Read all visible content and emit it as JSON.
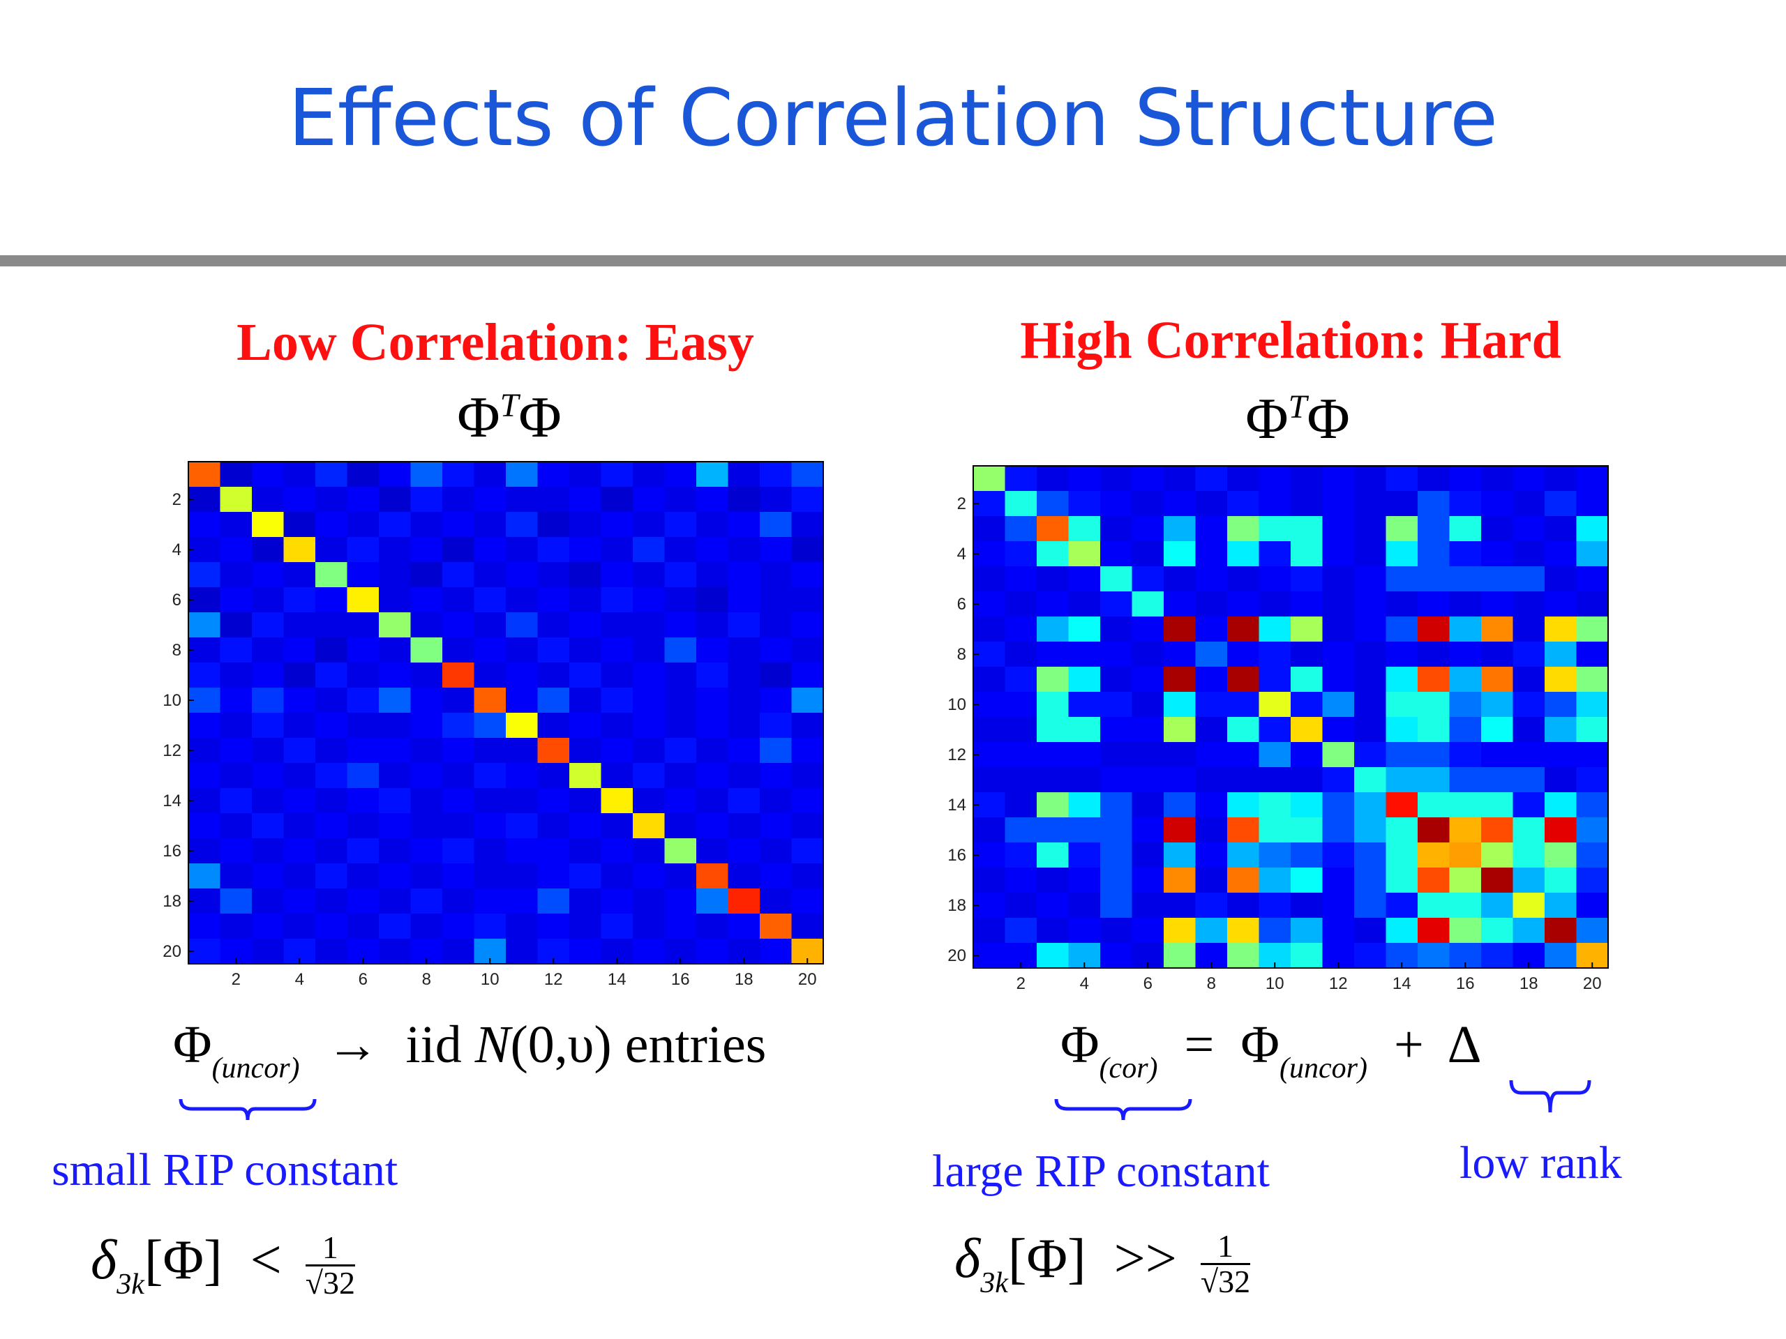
{
  "slide": {
    "title": "Effects of Correlation Structure"
  },
  "left": {
    "heading": "Low Correlation: Easy",
    "matrix_title_main": "Φ",
    "matrix_title_sup": "T",
    "matrix_title_end": "Φ",
    "eq_phi": "Φ",
    "eq_sub": "(uncor)",
    "eq_arrow": "→",
    "eq_iid": "iid",
    "eq_N": "N",
    "eq_args": "(0,υ)",
    "eq_entries": "entries",
    "brace_label": "small RIP constant",
    "rip_delta": "δ",
    "rip_sub": "3k",
    "rip_arg": "[Φ]",
    "rip_op": "<",
    "rip_num": "1",
    "rip_den": "√32"
  },
  "right": {
    "heading": "High Correlation: Hard",
    "matrix_title_main": "Φ",
    "matrix_title_sup": "T",
    "matrix_title_end": "Φ",
    "eq_phi1": "Φ",
    "eq_sub1": "(cor)",
    "eq_equals": "=",
    "eq_phi2": "Φ",
    "eq_sub2": "(uncor)",
    "eq_plus": "+",
    "eq_delta": "Δ",
    "brace_label_left": "large RIP constant",
    "brace_label_right": "low rank",
    "rip_delta": "δ",
    "rip_sub": "3k",
    "rip_arg": "[Φ]",
    "rip_op": ">>",
    "rip_num": "1",
    "rip_den": "√32"
  },
  "chart_data": [
    {
      "type": "heatmap",
      "title": "",
      "colormap": "jet",
      "value_range": [
        0,
        1
      ],
      "x_ticks": [
        2,
        4,
        6,
        8,
        10,
        12,
        14,
        16,
        18,
        20
      ],
      "y_ticks": [
        2,
        4,
        6,
        8,
        10,
        12,
        14,
        16,
        18,
        20
      ],
      "rows": 20,
      "cols": 20,
      "values": [
        [
          0.78,
          0.08,
          0.12,
          0.1,
          0.16,
          0.08,
          0.12,
          0.22,
          0.14,
          0.1,
          0.24,
          0.12,
          0.1,
          0.14,
          0.1,
          0.12,
          0.3,
          0.1,
          0.14,
          0.2
        ],
        [
          0.08,
          0.58,
          0.1,
          0.12,
          0.1,
          0.12,
          0.08,
          0.14,
          0.1,
          0.12,
          0.1,
          0.1,
          0.12,
          0.08,
          0.12,
          0.1,
          0.12,
          0.08,
          0.1,
          0.14
        ],
        [
          0.12,
          0.1,
          0.62,
          0.08,
          0.12,
          0.1,
          0.14,
          0.1,
          0.12,
          0.1,
          0.16,
          0.08,
          0.1,
          0.12,
          0.1,
          0.14,
          0.1,
          0.12,
          0.2,
          0.1
        ],
        [
          0.1,
          0.12,
          0.08,
          0.66,
          0.1,
          0.14,
          0.1,
          0.12,
          0.08,
          0.12,
          0.1,
          0.14,
          0.12,
          0.1,
          0.16,
          0.1,
          0.12,
          0.1,
          0.12,
          0.08
        ],
        [
          0.16,
          0.1,
          0.12,
          0.1,
          0.5,
          0.12,
          0.1,
          0.08,
          0.14,
          0.1,
          0.12,
          0.1,
          0.08,
          0.12,
          0.1,
          0.14,
          0.1,
          0.12,
          0.1,
          0.12
        ],
        [
          0.08,
          0.12,
          0.1,
          0.14,
          0.12,
          0.64,
          0.1,
          0.12,
          0.1,
          0.14,
          0.1,
          0.12,
          0.1,
          0.14,
          0.12,
          0.1,
          0.08,
          0.12,
          0.1,
          0.1
        ],
        [
          0.26,
          0.08,
          0.14,
          0.1,
          0.1,
          0.1,
          0.52,
          0.1,
          0.12,
          0.1,
          0.18,
          0.1,
          0.12,
          0.1,
          0.1,
          0.12,
          0.1,
          0.14,
          0.1,
          0.12
        ],
        [
          0.1,
          0.14,
          0.1,
          0.12,
          0.08,
          0.12,
          0.1,
          0.5,
          0.1,
          0.12,
          0.1,
          0.14,
          0.1,
          0.12,
          0.1,
          0.2,
          0.12,
          0.1,
          0.12,
          0.1
        ],
        [
          0.14,
          0.1,
          0.12,
          0.08,
          0.14,
          0.1,
          0.12,
          0.1,
          0.82,
          0.1,
          0.12,
          0.1,
          0.14,
          0.1,
          0.12,
          0.1,
          0.14,
          0.1,
          0.08,
          0.12
        ],
        [
          0.2,
          0.12,
          0.18,
          0.12,
          0.1,
          0.14,
          0.22,
          0.12,
          0.1,
          0.78,
          0.12,
          0.2,
          0.1,
          0.14,
          0.12,
          0.1,
          0.12,
          0.1,
          0.12,
          0.26
        ],
        [
          0.12,
          0.1,
          0.14,
          0.1,
          0.12,
          0.1,
          0.1,
          0.12,
          0.16,
          0.2,
          0.62,
          0.1,
          0.12,
          0.1,
          0.12,
          0.1,
          0.12,
          0.1,
          0.14,
          0.1
        ],
        [
          0.1,
          0.12,
          0.1,
          0.14,
          0.1,
          0.12,
          0.12,
          0.1,
          0.12,
          0.1,
          0.1,
          0.8,
          0.1,
          0.12,
          0.1,
          0.14,
          0.1,
          0.12,
          0.2,
          0.12
        ],
        [
          0.12,
          0.1,
          0.12,
          0.1,
          0.14,
          0.18,
          0.1,
          0.12,
          0.1,
          0.14,
          0.12,
          0.1,
          0.58,
          0.1,
          0.14,
          0.1,
          0.12,
          0.1,
          0.12,
          0.1
        ],
        [
          0.1,
          0.14,
          0.1,
          0.12,
          0.1,
          0.12,
          0.14,
          0.1,
          0.12,
          0.1,
          0.1,
          0.12,
          0.1,
          0.64,
          0.1,
          0.12,
          0.1,
          0.14,
          0.1,
          0.12
        ],
        [
          0.12,
          0.1,
          0.14,
          0.1,
          0.12,
          0.1,
          0.12,
          0.1,
          0.1,
          0.12,
          0.14,
          0.1,
          0.12,
          0.1,
          0.66,
          0.1,
          0.12,
          0.1,
          0.12,
          0.1
        ],
        [
          0.1,
          0.12,
          0.1,
          0.12,
          0.1,
          0.14,
          0.1,
          0.12,
          0.14,
          0.1,
          0.12,
          0.12,
          0.1,
          0.12,
          0.1,
          0.52,
          0.1,
          0.12,
          0.1,
          0.14
        ],
        [
          0.26,
          0.1,
          0.12,
          0.1,
          0.14,
          0.1,
          0.12,
          0.1,
          0.12,
          0.1,
          0.1,
          0.12,
          0.14,
          0.1,
          0.12,
          0.1,
          0.8,
          0.1,
          0.12,
          0.1
        ],
        [
          0.1,
          0.2,
          0.1,
          0.12,
          0.1,
          0.12,
          0.1,
          0.14,
          0.1,
          0.12,
          0.12,
          0.2,
          0.1,
          0.12,
          0.1,
          0.12,
          0.24,
          0.84,
          0.1,
          0.12
        ],
        [
          0.12,
          0.1,
          0.12,
          0.1,
          0.12,
          0.1,
          0.14,
          0.1,
          0.12,
          0.14,
          0.1,
          0.12,
          0.1,
          0.14,
          0.1,
          0.12,
          0.1,
          0.12,
          0.78,
          0.1
        ],
        [
          0.14,
          0.12,
          0.1,
          0.14,
          0.1,
          0.12,
          0.1,
          0.12,
          0.1,
          0.26,
          0.1,
          0.14,
          0.12,
          0.1,
          0.12,
          0.1,
          0.12,
          0.1,
          0.12,
          0.7
        ]
      ]
    },
    {
      "type": "heatmap",
      "title": "",
      "colormap": "jet",
      "value_range": [
        0,
        1
      ],
      "x_ticks": [
        2,
        4,
        6,
        8,
        10,
        12,
        14,
        16,
        18,
        20
      ],
      "y_ticks": [
        2,
        4,
        6,
        8,
        10,
        12,
        14,
        16,
        18,
        20
      ],
      "rows": 20,
      "cols": 20,
      "values": [
        [
          0.52,
          0.14,
          0.1,
          0.12,
          0.1,
          0.12,
          0.1,
          0.14,
          0.1,
          0.12,
          0.1,
          0.12,
          0.1,
          0.14,
          0.1,
          0.12,
          0.1,
          0.12,
          0.1,
          0.12
        ],
        [
          0.14,
          0.4,
          0.2,
          0.14,
          0.12,
          0.1,
          0.12,
          0.1,
          0.14,
          0.12,
          0.1,
          0.12,
          0.1,
          0.1,
          0.2,
          0.14,
          0.12,
          0.1,
          0.16,
          0.12
        ],
        [
          0.1,
          0.2,
          0.78,
          0.4,
          0.1,
          0.12,
          0.3,
          0.12,
          0.5,
          0.4,
          0.4,
          0.12,
          0.1,
          0.5,
          0.2,
          0.4,
          0.1,
          0.12,
          0.1,
          0.36
        ],
        [
          0.12,
          0.14,
          0.4,
          0.54,
          0.12,
          0.1,
          0.38,
          0.12,
          0.36,
          0.14,
          0.4,
          0.12,
          0.1,
          0.36,
          0.2,
          0.14,
          0.12,
          0.1,
          0.12,
          0.3
        ],
        [
          0.1,
          0.12,
          0.1,
          0.12,
          0.4,
          0.14,
          0.1,
          0.12,
          0.1,
          0.12,
          0.14,
          0.1,
          0.12,
          0.2,
          0.2,
          0.2,
          0.2,
          0.2,
          0.1,
          0.12
        ],
        [
          0.12,
          0.1,
          0.12,
          0.1,
          0.14,
          0.4,
          0.12,
          0.1,
          0.12,
          0.1,
          0.12,
          0.1,
          0.12,
          0.1,
          0.12,
          0.1,
          0.12,
          0.1,
          0.12,
          0.1
        ],
        [
          0.1,
          0.12,
          0.3,
          0.38,
          0.1,
          0.12,
          0.96,
          0.12,
          0.96,
          0.36,
          0.54,
          0.1,
          0.12,
          0.2,
          0.92,
          0.3,
          0.74,
          0.1,
          0.66,
          0.5
        ],
        [
          0.14,
          0.1,
          0.12,
          0.12,
          0.12,
          0.1,
          0.12,
          0.22,
          0.12,
          0.14,
          0.1,
          0.12,
          0.1,
          0.12,
          0.1,
          0.12,
          0.1,
          0.14,
          0.3,
          0.12
        ],
        [
          0.1,
          0.14,
          0.5,
          0.36,
          0.1,
          0.12,
          0.96,
          0.12,
          0.96,
          0.14,
          0.4,
          0.12,
          0.1,
          0.36,
          0.8,
          0.3,
          0.76,
          0.1,
          0.66,
          0.5
        ],
        [
          0.12,
          0.12,
          0.4,
          0.14,
          0.14,
          0.1,
          0.36,
          0.14,
          0.14,
          0.6,
          0.14,
          0.26,
          0.1,
          0.4,
          0.4,
          0.24,
          0.3,
          0.14,
          0.2,
          0.34
        ],
        [
          0.1,
          0.1,
          0.4,
          0.4,
          0.12,
          0.12,
          0.54,
          0.1,
          0.4,
          0.14,
          0.66,
          0.12,
          0.1,
          0.36,
          0.4,
          0.2,
          0.38,
          0.1,
          0.3,
          0.4
        ],
        [
          0.12,
          0.12,
          0.12,
          0.12,
          0.1,
          0.1,
          0.1,
          0.12,
          0.12,
          0.26,
          0.12,
          0.5,
          0.14,
          0.2,
          0.2,
          0.14,
          0.12,
          0.12,
          0.12,
          0.12
        ],
        [
          0.1,
          0.1,
          0.1,
          0.1,
          0.12,
          0.12,
          0.12,
          0.1,
          0.1,
          0.1,
          0.1,
          0.14,
          0.4,
          0.3,
          0.3,
          0.2,
          0.2,
          0.2,
          0.1,
          0.14
        ],
        [
          0.14,
          0.1,
          0.5,
          0.36,
          0.2,
          0.1,
          0.2,
          0.12,
          0.36,
          0.4,
          0.36,
          0.2,
          0.3,
          0.86,
          0.4,
          0.4,
          0.4,
          0.14,
          0.36,
          0.2
        ],
        [
          0.1,
          0.2,
          0.2,
          0.2,
          0.2,
          0.12,
          0.92,
          0.1,
          0.8,
          0.4,
          0.4,
          0.2,
          0.3,
          0.4,
          0.96,
          0.7,
          0.8,
          0.4,
          0.9,
          0.24
        ],
        [
          0.12,
          0.14,
          0.4,
          0.14,
          0.2,
          0.1,
          0.3,
          0.12,
          0.3,
          0.24,
          0.2,
          0.14,
          0.2,
          0.4,
          0.7,
          0.72,
          0.54,
          0.4,
          0.5,
          0.2
        ],
        [
          0.1,
          0.12,
          0.1,
          0.12,
          0.2,
          0.12,
          0.74,
          0.1,
          0.76,
          0.3,
          0.38,
          0.12,
          0.2,
          0.4,
          0.8,
          0.54,
          0.96,
          0.3,
          0.4,
          0.16
        ],
        [
          0.12,
          0.1,
          0.12,
          0.1,
          0.2,
          0.1,
          0.1,
          0.14,
          0.1,
          0.14,
          0.1,
          0.12,
          0.2,
          0.14,
          0.4,
          0.4,
          0.3,
          0.6,
          0.3,
          0.12
        ],
        [
          0.1,
          0.16,
          0.1,
          0.12,
          0.1,
          0.12,
          0.66,
          0.3,
          0.66,
          0.2,
          0.3,
          0.12,
          0.1,
          0.36,
          0.9,
          0.5,
          0.4,
          0.3,
          0.96,
          0.24
        ],
        [
          0.12,
          0.12,
          0.36,
          0.3,
          0.12,
          0.1,
          0.5,
          0.12,
          0.5,
          0.34,
          0.4,
          0.12,
          0.14,
          0.2,
          0.24,
          0.2,
          0.16,
          0.12,
          0.24,
          0.7
        ]
      ]
    }
  ]
}
